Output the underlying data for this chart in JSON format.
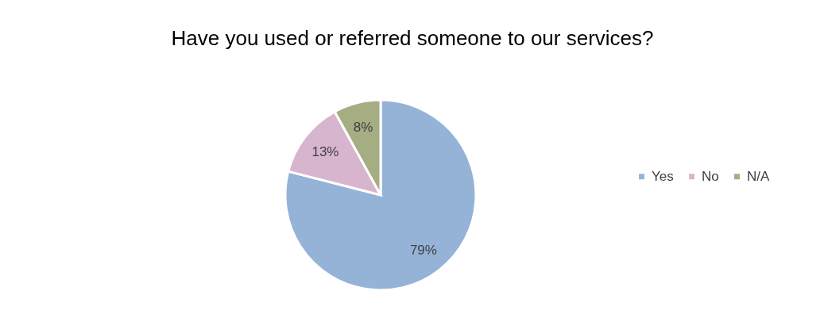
{
  "chart_data": {
    "type": "pie",
    "title": "Have you used or referred someone to our services?",
    "categories": [
      "Yes",
      "No",
      "N/A"
    ],
    "values": [
      79,
      13,
      8
    ],
    "value_labels": [
      "79%",
      "13%",
      "8%"
    ],
    "colors": [
      "#95b3d7",
      "#d7b5cf",
      "#a6ad83"
    ],
    "legend": "right"
  }
}
